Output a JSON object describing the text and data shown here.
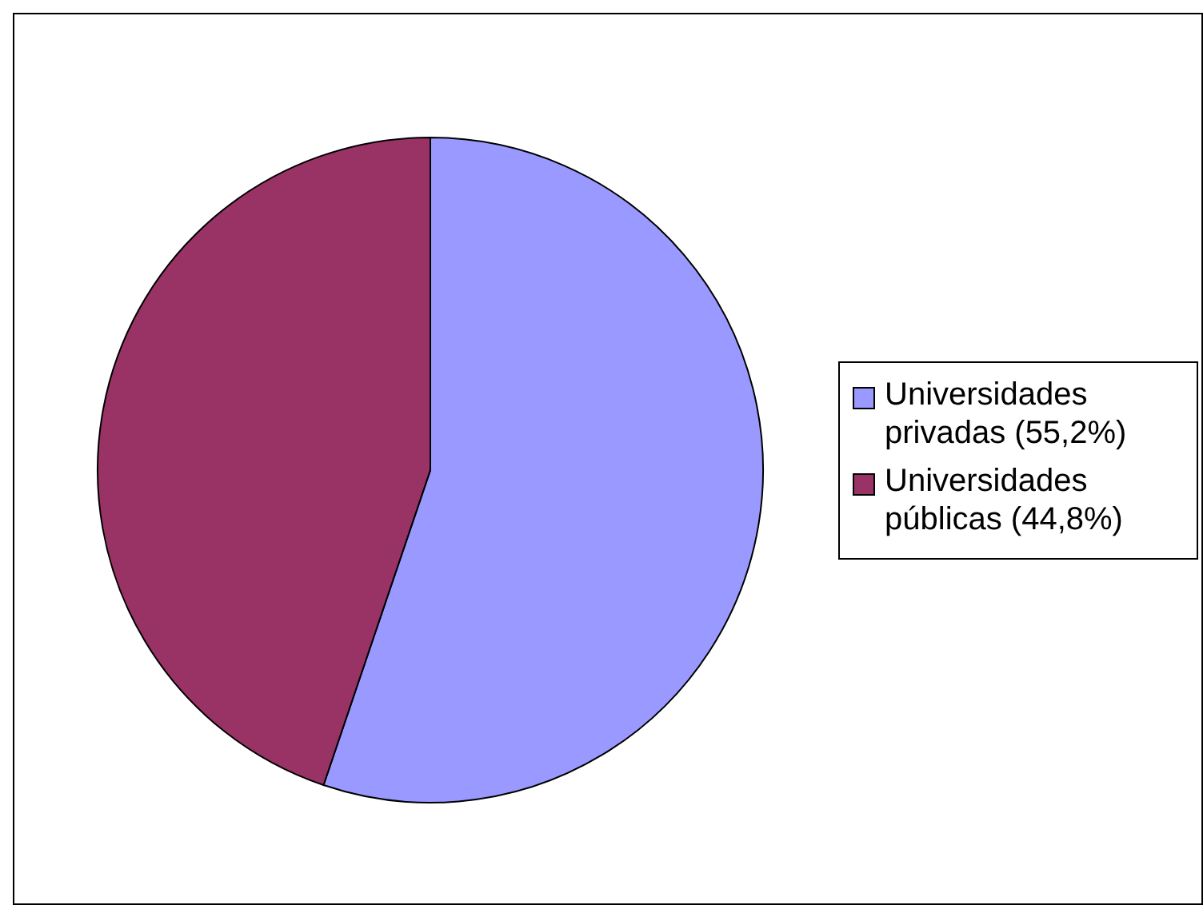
{
  "chart_data": {
    "type": "pie",
    "categories": [
      "Universidades privadas (55,2%)",
      "Universidades públicas (44,8%)"
    ],
    "values": [
      55.2,
      44.8
    ],
    "colors": [
      "#9999ff",
      "#993366"
    ],
    "legend": "right"
  }
}
